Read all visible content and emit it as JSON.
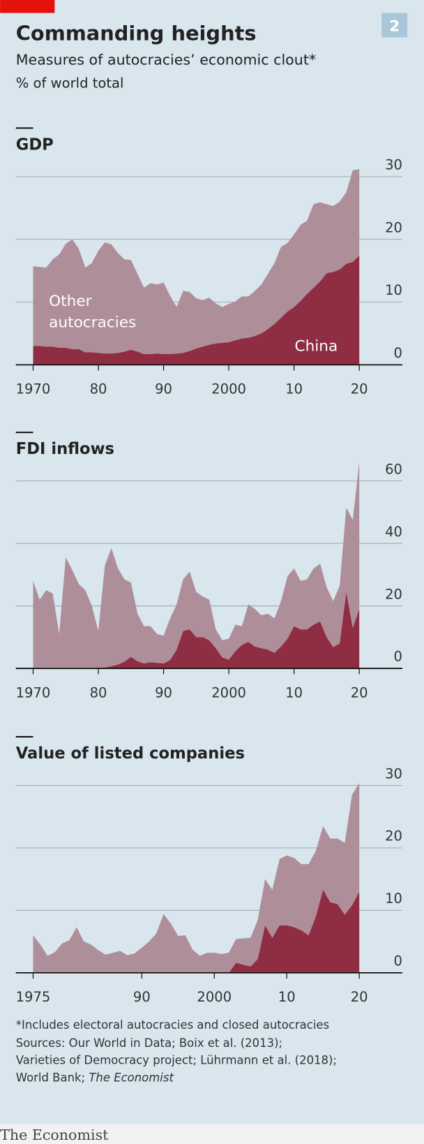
{
  "title": "Commanding heights",
  "subtitle": "Measures of autocracies’ economic clout*",
  "unit": "% of world total",
  "figure_number": "2",
  "chart_data": [
    {
      "type": "area",
      "stacked": true,
      "title": "GDP",
      "x": [
        1970,
        1971,
        1972,
        1973,
        1974,
        1975,
        1976,
        1977,
        1978,
        1979,
        1980,
        1981,
        1982,
        1983,
        1984,
        1985,
        1986,
        1987,
        1988,
        1989,
        1990,
        1991,
        1992,
        1993,
        1994,
        1995,
        1996,
        1997,
        1998,
        1999,
        2000,
        2001,
        2002,
        2003,
        2004,
        2005,
        2006,
        2007,
        2008,
        2009,
        2010,
        2011,
        2012,
        2013,
        2014,
        2015,
        2016,
        2017,
        2018,
        2019,
        2020
      ],
      "xlim": [
        1970,
        2020
      ],
      "xticks": [
        1970,
        {
          "value": 1980,
          "label": "80"
        },
        {
          "value": 1990,
          "label": "90"
        },
        2000,
        {
          "value": 2010,
          "label": "10"
        },
        {
          "value": 2020,
          "label": "20"
        }
      ],
      "ylim": [
        0,
        32
      ],
      "yticks": [
        0,
        10,
        20,
        30
      ],
      "grid": true,
      "series": [
        {
          "name": "China",
          "color": "#8f2d43",
          "values": [
            3.0,
            3.0,
            2.9,
            2.9,
            2.7,
            2.7,
            2.5,
            2.5,
            2.0,
            2.0,
            1.9,
            1.8,
            1.8,
            1.9,
            2.1,
            2.4,
            2.1,
            1.7,
            1.7,
            1.8,
            1.7,
            1.7,
            1.8,
            1.9,
            2.2,
            2.6,
            2.9,
            3.2,
            3.4,
            3.5,
            3.6,
            3.9,
            4.2,
            4.3,
            4.6,
            5.0,
            5.7,
            6.5,
            7.5,
            8.5,
            9.2,
            10.2,
            11.3,
            12.3,
            13.3,
            14.6,
            14.8,
            15.2,
            16.1,
            16.4,
            17.4
          ]
        },
        {
          "name": "Other autocracies",
          "color": "#ae8e99",
          "values": [
            12.7,
            12.6,
            12.6,
            13.9,
            14.9,
            16.6,
            17.5,
            16.0,
            13.5,
            14.2,
            16.3,
            17.7,
            17.4,
            15.9,
            14.7,
            14.3,
            12.4,
            10.6,
            11.3,
            11.0,
            11.4,
            9.3,
            7.4,
            9.9,
            9.4,
            8.0,
            7.4,
            7.5,
            6.4,
            5.7,
            6.1,
            6.2,
            6.7,
            6.6,
            7.2,
            7.8,
            8.8,
            9.7,
            11.3,
            10.9,
            11.6,
            12.1,
            11.7,
            13.3,
            12.6,
            11.0,
            10.5,
            10.8,
            11.4,
            14.6,
            13.8
          ]
        }
      ]
    },
    {
      "type": "area",
      "stacked": true,
      "title": "FDI inflows",
      "x": [
        1970,
        1971,
        1972,
        1973,
        1974,
        1975,
        1976,
        1977,
        1978,
        1979,
        1980,
        1981,
        1982,
        1983,
        1984,
        1985,
        1986,
        1987,
        1988,
        1989,
        1990,
        1991,
        1992,
        1993,
        1994,
        1995,
        1996,
        1997,
        1998,
        1999,
        2000,
        2001,
        2002,
        2003,
        2004,
        2005,
        2006,
        2007,
        2008,
        2009,
        2010,
        2011,
        2012,
        2013,
        2014,
        2015,
        2016,
        2017,
        2018,
        2019,
        2020
      ],
      "xlim": [
        1970,
        2020
      ],
      "xticks": [
        1970,
        {
          "value": 1980,
          "label": "80"
        },
        {
          "value": 1990,
          "label": "90"
        },
        2000,
        {
          "value": 2010,
          "label": "10"
        },
        {
          "value": 2020,
          "label": "20"
        }
      ],
      "ylim": [
        0,
        67
      ],
      "yticks": [
        0,
        20,
        40,
        60
      ],
      "grid": true,
      "series": [
        {
          "color": "#8f2d43",
          "values": [
            0,
            0,
            0,
            0,
            0,
            0,
            0,
            0,
            0,
            0,
            0,
            0.3,
            0.7,
            1.2,
            2.2,
            3.7,
            2.3,
            1.6,
            2.0,
            1.8,
            1.6,
            2.7,
            6,
            12,
            12.5,
            10,
            10,
            9,
            6.5,
            3.5,
            2.8,
            5.5,
            7.5,
            8.5,
            7,
            6.5,
            6,
            5,
            7,
            9.5,
            13.5,
            12.5,
            12.5,
            14,
            15,
            10,
            6.8,
            8,
            24.5,
            13,
            19
          ]
        },
        {
          "color": "#ae8e99",
          "values": [
            28,
            22,
            25,
            24,
            11,
            35.5,
            31.5,
            27,
            25,
            20,
            12,
            32.7,
            37.8,
            30.8,
            26.3,
            23.8,
            15.2,
            11.9,
            11.5,
            9.2,
            8.9,
            13.3,
            14.5,
            16.5,
            18.5,
            14.5,
            13,
            13,
            6,
            5.5,
            6.7,
            8.5,
            6,
            12,
            12,
            10.5,
            11.5,
            11,
            14.5,
            20,
            18.5,
            15.5,
            16,
            18,
            18.5,
            16,
            14.7,
            18.5,
            27,
            34.5,
            47
          ]
        }
      ]
    },
    {
      "type": "area",
      "stacked": true,
      "title": "Value of listed companies",
      "x": [
        1975,
        1976,
        1977,
        1978,
        1979,
        1980,
        1981,
        1982,
        1983,
        1984,
        1985,
        1986,
        1987,
        1988,
        1989,
        1990,
        1991,
        1992,
        1993,
        1994,
        1995,
        1996,
        1997,
        1998,
        1999,
        2000,
        2001,
        2002,
        2003,
        2004,
        2005,
        2006,
        2007,
        2008,
        2009,
        2010,
        2011,
        2012,
        2013,
        2014,
        2015,
        2016,
        2017,
        2018,
        2019,
        2020
      ],
      "xlim": [
        1975,
        2020
      ],
      "xticks": [
        1975,
        {
          "value": 1990,
          "label": "90"
        },
        2000,
        {
          "value": 2010,
          "label": "10"
        },
        {
          "value": 2020,
          "label": "20"
        }
      ],
      "ylim": [
        0,
        31
      ],
      "yticks": [
        0,
        10,
        20,
        30
      ],
      "grid": true,
      "series": [
        {
          "color": "#8f2d43",
          "values": [
            0,
            0,
            0,
            0,
            0,
            0,
            0,
            0,
            0,
            0,
            0,
            0,
            0,
            0,
            0,
            0,
            0,
            0,
            0,
            0,
            0,
            0,
            0,
            0,
            0,
            0,
            0,
            0,
            1.6,
            1.3,
            1,
            2.2,
            7.6,
            5.6,
            7.6,
            7.6,
            7.3,
            6.8,
            6,
            9,
            13.3,
            11.3,
            11,
            9.3,
            10.8,
            13
          ]
        },
        {
          "color": "#ae8e99",
          "values": [
            6,
            4.5,
            2.7,
            3.3,
            4.7,
            5.2,
            7.3,
            5,
            4.5,
            3.6,
            2.9,
            3.2,
            3.5,
            2.8,
            3.1,
            4,
            5,
            6.3,
            9.4,
            7.9,
            5.9,
            6,
            3.7,
            2.7,
            3.2,
            3.2,
            3,
            3.2,
            3.8,
            4.2,
            4.6,
            6.3,
            7.4,
            7.7,
            10.6,
            11.2,
            11.1,
            10.6,
            11.4,
            10.5,
            10.2,
            10.2,
            10.5,
            11.5,
            17.7,
            17.4
          ]
        }
      ]
    }
  ],
  "footnote": "*Includes electoral autocracies and closed autocracies",
  "sources": [
    "Sources: Our World in Data; Boix et al. (2013);",
    "Varieties of Democracy project; Lührmann et al. (2018);",
    "World Bank;"
  ],
  "sources_italic": "The Economist",
  "brand": "The Economist"
}
